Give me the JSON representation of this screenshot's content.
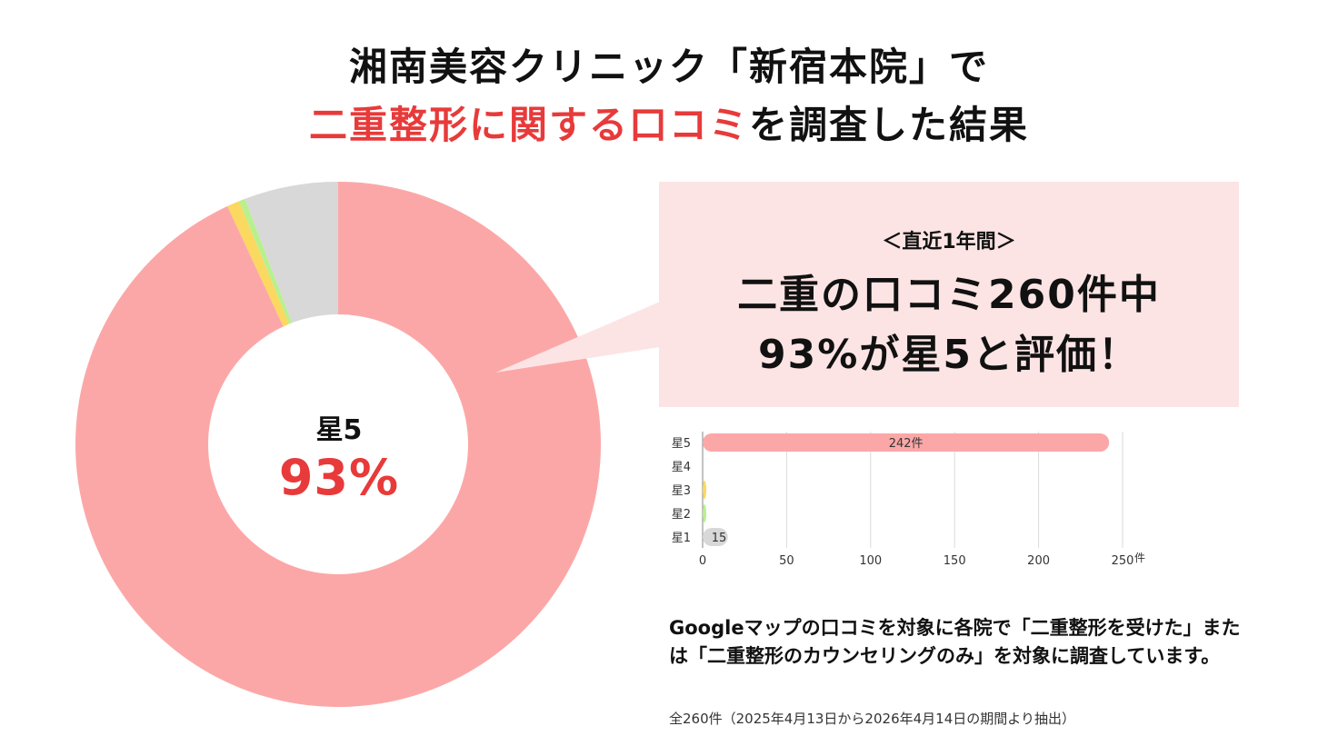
{
  "title": {
    "line1": "湘南美容クリニック「新宿本院」で",
    "line2_highlight": "二重整形に関する口コミ",
    "line2_rest": "を調査した結果"
  },
  "donut": {
    "center_label": "星5",
    "center_value": "93%",
    "colors": {
      "星5": "#fca7a7",
      "星4": "#e8e8e8",
      "星3": "#fbd860",
      "星2": "#b9f08e",
      "星1": "#d8d8d8",
      "hole": "#ffffff"
    }
  },
  "callout": {
    "period": "＜直近1年間＞",
    "line1": "二重の口コミ260件中",
    "line2": "93%が星5と評価！",
    "background": "#fde4e4"
  },
  "chart_data": {
    "type": "bar",
    "orientation": "horizontal",
    "categories": [
      "星5",
      "星4",
      "星3",
      "星2",
      "星1"
    ],
    "values": [
      242,
      0,
      2,
      1,
      15
    ],
    "value_labels": [
      "242件",
      "",
      "",
      "",
      "15"
    ],
    "total": 260,
    "xlim": [
      0,
      250
    ],
    "xticks": [
      "0",
      "50",
      "100",
      "150",
      "200",
      "250"
    ],
    "x_unit": "件",
    "grid": true,
    "colors": [
      "#fca7a7",
      "#e8e8e8",
      "#fbd860",
      "#b9f08e",
      "#d8d8d8"
    ]
  },
  "note": {
    "text": "Googleマップの口コミを対象に各院で「二重整形を受けた」または「二重整形のカウンセリングのみ」を対象に調査しています。",
    "footnote": "全260件（2025年4月13日から2026年4月14日の期間より抽出）"
  }
}
